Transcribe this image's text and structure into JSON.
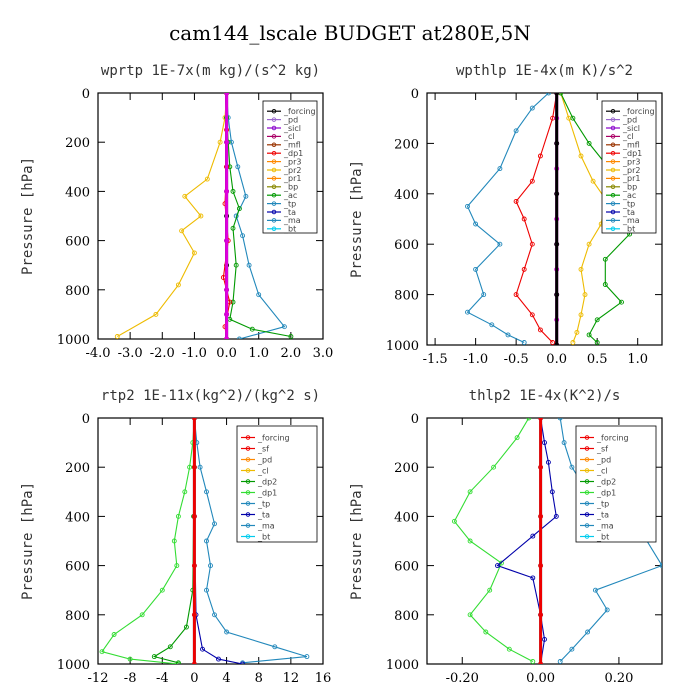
{
  "figure": {
    "title": "cam144_lscale  BUDGET at280E,5N"
  },
  "colors": {
    "magenta": "#dd00dd",
    "violet": "#9966cc",
    "purple": "#8800cc",
    "darkmagenta": "#aa0066",
    "maroon": "#993300",
    "red": "#ee0000",
    "orange": "#ff8800",
    "gold": "#eebb00",
    "olive": "#888800",
    "green": "#009900",
    "lime": "#33dd33",
    "teal": "#2288bb",
    "navy": "#0000aa",
    "cyan": "#00ccee",
    "black": "#000000"
  },
  "chart_data": [
    {
      "type": "line",
      "title": "wprtp  1E-7x(m kg)/(s^2 kg)",
      "ylabel": "Pressure [hPa]",
      "xlabel": "",
      "xlim": [
        -4,
        3
      ],
      "ylim": [
        1000,
        0
      ],
      "xticks": [
        -4,
        -3,
        -2,
        -1,
        0,
        1,
        2,
        3
      ],
      "xtick_labels": [
        "-4.0",
        "-3.0",
        "-2.0",
        "-1.0",
        "0.0",
        "1.0",
        "2.0",
        "3.0"
      ],
      "yticks": [
        0,
        200,
        400,
        600,
        800,
        1000
      ],
      "ytick_labels": [
        "0",
        "200",
        "400",
        "600",
        "800",
        "1000"
      ],
      "legend": [
        "_forcing",
        "_pd",
        "_sicl",
        "_cl",
        "_mfl",
        "_dp1",
        "_pr3",
        "_pr2",
        "_pr1",
        "_bp",
        "_ac",
        "_tp",
        "_ta",
        "_ma",
        "_bt"
      ],
      "legend_position": "top-right",
      "series": [
        {
          "name": "_forcing",
          "color": "black",
          "x": [
            0,
            0,
            0,
            0,
            0,
            0,
            0,
            0,
            0,
            0,
            0
          ],
          "y": [
            0,
            100,
            200,
            300,
            400,
            500,
            600,
            700,
            800,
            900,
            1000
          ]
        },
        {
          "name": "_pr1",
          "color": "gold",
          "x": [
            0,
            -0.05,
            -0.2,
            -0.6,
            -1.3,
            -0.8,
            -1.4,
            -1.0,
            -1.5,
            -2.2,
            -3.4
          ],
          "y": [
            0,
            100,
            200,
            350,
            420,
            500,
            560,
            650,
            780,
            900,
            990
          ]
        },
        {
          "name": "_tp",
          "color": "teal",
          "x": [
            0,
            0.05,
            0.15,
            0.35,
            0.6,
            0.3,
            0.5,
            0.7,
            1.0,
            1.8,
            0.4
          ],
          "y": [
            0,
            100,
            200,
            300,
            420,
            500,
            580,
            700,
            820,
            950,
            1000
          ]
        },
        {
          "name": "_ac",
          "color": "green",
          "x": [
            0,
            0,
            0.05,
            0.1,
            0.2,
            0.4,
            0.2,
            0.3,
            0.2,
            0.1,
            0.8,
            2.0
          ],
          "y": [
            0,
            100,
            200,
            300,
            400,
            470,
            550,
            700,
            850,
            920,
            960,
            990
          ]
        },
        {
          "name": "_dp1",
          "color": "red",
          "x": [
            0,
            0,
            0,
            -0.05,
            0.05,
            -0.1,
            0.1,
            -0.05,
            0
          ],
          "y": [
            0,
            150,
            300,
            450,
            600,
            750,
            850,
            950,
            1000
          ]
        },
        {
          "name": "_bt",
          "color": "magenta",
          "x": [
            0,
            0,
            0,
            0,
            0,
            0,
            0
          ],
          "y": [
            0,
            200,
            400,
            600,
            800,
            900,
            1000
          ]
        }
      ]
    },
    {
      "type": "line",
      "title": "wpthlp  1E-4x(m K)/s^2",
      "ylabel": "Pressure [hPa]",
      "xlabel": "",
      "xlim": [
        -1.6,
        1.3
      ],
      "ylim": [
        1000,
        0
      ],
      "xticks": [
        -1.5,
        -1.0,
        -0.5,
        0.0,
        0.5,
        1.0
      ],
      "xtick_labels": [
        "-1.5",
        "-1.0",
        "-0.5",
        "0.0",
        "0.5",
        "1.0"
      ],
      "yticks": [
        0,
        200,
        400,
        600,
        800,
        1000
      ],
      "ytick_labels": [
        "0",
        "200",
        "400",
        "600",
        "800",
        "1000"
      ],
      "legend": [
        "_forcing",
        "_pd",
        "_sicl",
        "_cl",
        "_mfl",
        "_dp1",
        "_pr3",
        "_pr2",
        "_pr1",
        "_bp",
        "_ac",
        "_tp",
        "_ta",
        "_ma",
        "_bt"
      ],
      "legend_position": "top-right",
      "series": [
        {
          "name": "_tp",
          "color": "teal",
          "x": [
            -0.1,
            -0.3,
            -0.5,
            -0.7,
            -1.1,
            -1.0,
            -0.7,
            -1.0,
            -0.9,
            -1.1,
            -0.8,
            -0.6,
            -0.4
          ],
          "y": [
            0,
            60,
            150,
            300,
            450,
            520,
            600,
            700,
            800,
            870,
            920,
            960,
            990
          ]
        },
        {
          "name": "_dp1",
          "color": "red",
          "x": [
            0,
            -0.05,
            -0.2,
            -0.3,
            -0.5,
            -0.4,
            -0.3,
            -0.4,
            -0.5,
            -0.3,
            -0.2,
            -0.05
          ],
          "y": [
            0,
            100,
            250,
            350,
            430,
            500,
            600,
            700,
            800,
            880,
            940,
            990
          ]
        },
        {
          "name": "_pr1",
          "color": "gold",
          "x": [
            0.05,
            0.15,
            0.3,
            0.45,
            0.6,
            0.55,
            0.4,
            0.3,
            0.35,
            0.3,
            0.25,
            0.2
          ],
          "y": [
            0,
            100,
            250,
            350,
            420,
            520,
            600,
            700,
            800,
            880,
            950,
            990
          ]
        },
        {
          "name": "_ac",
          "color": "green",
          "x": [
            0.05,
            0.2,
            0.4,
            0.7,
            1.0,
            0.8,
            0.9,
            0.6,
            0.6,
            0.8,
            0.5,
            0.4,
            0.5
          ],
          "y": [
            0,
            100,
            200,
            320,
            400,
            480,
            560,
            660,
            760,
            830,
            900,
            960,
            990
          ]
        },
        {
          "name": "_bt",
          "color": "magenta",
          "x": [
            0,
            0,
            0,
            0,
            0,
            0,
            0,
            0,
            0,
            0,
            0
          ],
          "y": [
            0,
            100,
            200,
            300,
            400,
            500,
            600,
            700,
            800,
            900,
            1000
          ]
        },
        {
          "name": "_forcing",
          "color": "black",
          "x": [
            0,
            0,
            0,
            0,
            0,
            0
          ],
          "y": [
            0,
            200,
            400,
            600,
            800,
            1000
          ]
        }
      ]
    },
    {
      "type": "line",
      "title": "rtp2  1E-11x(kg^2)/(kg^2 s)",
      "ylabel": "Pressure [hPa]",
      "xlabel": "",
      "xlim": [
        -12,
        16
      ],
      "ylim": [
        1000,
        0
      ],
      "xticks": [
        -12,
        -8,
        -4,
        0,
        4,
        8,
        12,
        16
      ],
      "xtick_labels": [
        "-12",
        "-8",
        "-4",
        "0",
        "4",
        "8",
        "12",
        "16"
      ],
      "yticks": [
        0,
        200,
        400,
        600,
        800,
        1000
      ],
      "ytick_labels": [
        "0",
        "200",
        "400",
        "600",
        "800",
        "1000"
      ],
      "legend": [
        "_forcing",
        "_sf",
        "_pd",
        "_cl",
        "_dp2",
        "_dp1",
        "_tp",
        "_ta",
        "_ma",
        "_bt"
      ],
      "legend_position": "top-right",
      "series": [
        {
          "name": "_dp1",
          "color": "lime",
          "x": [
            0,
            -0.2,
            -0.6,
            -1.2,
            -2.0,
            -2.5,
            -2.2,
            -4.0,
            -6.5,
            -10.0,
            -11.5,
            -8.0,
            -2.0
          ],
          "y": [
            0,
            100,
            200,
            300,
            400,
            500,
            600,
            700,
            800,
            880,
            950,
            980,
            1000
          ]
        },
        {
          "name": "_tp",
          "color": "teal",
          "x": [
            0,
            0.3,
            0.7,
            1.5,
            2.5,
            1.5,
            2.0,
            1.5,
            2.5,
            4.0,
            10.0,
            14.0,
            6.0
          ],
          "y": [
            0,
            100,
            200,
            300,
            430,
            500,
            600,
            700,
            800,
            870,
            930,
            970,
            995
          ]
        },
        {
          "name": "_dp2",
          "color": "green",
          "x": [
            0,
            0,
            -0.1,
            -0.2,
            -1.0,
            -3.0,
            -5.0,
            -2.0
          ],
          "y": [
            0,
            200,
            400,
            700,
            850,
            930,
            970,
            995
          ]
        },
        {
          "name": "_ta",
          "color": "navy",
          "x": [
            0,
            0,
            0.2,
            1.0,
            3.0,
            6.0
          ],
          "y": [
            0,
            400,
            800,
            940,
            980,
            1000
          ]
        },
        {
          "name": "_bt",
          "color": "cyan",
          "x": [
            0,
            0,
            0,
            0,
            0,
            0
          ],
          "y": [
            0,
            200,
            400,
            600,
            800,
            1000
          ]
        },
        {
          "name": "_forcing",
          "color": "red",
          "x": [
            0,
            0,
            0,
            0,
            0,
            0
          ],
          "y": [
            0,
            200,
            400,
            600,
            800,
            1000
          ]
        }
      ]
    },
    {
      "type": "line",
      "title": "thlp2  1E-4x(K^2)/s",
      "ylabel": "Pressure [hPa]",
      "xlabel": "",
      "xlim": [
        -0.29,
        0.31
      ],
      "ylim": [
        1000,
        0
      ],
      "xticks": [
        -0.2,
        0.0,
        0.2
      ],
      "xtick_labels": [
        "-0.20",
        "0.00",
        "0.20"
      ],
      "yticks": [
        0,
        200,
        400,
        600,
        800,
        1000
      ],
      "ytick_labels": [
        "0",
        "200",
        "400",
        "600",
        "800",
        "1000"
      ],
      "legend": [
        "_forcing",
        "_sf",
        "_pd",
        "_cl",
        "_dp2",
        "_dp1",
        "_tp",
        "_ta",
        "_ma",
        "_bt"
      ],
      "legend_position": "top-right",
      "series": [
        {
          "name": "_dp1",
          "color": "lime",
          "x": [
            -0.03,
            -0.06,
            -0.12,
            -0.18,
            -0.22,
            -0.18,
            -0.1,
            -0.13,
            -0.18,
            -0.14,
            -0.08,
            -0.02
          ],
          "y": [
            0,
            80,
            200,
            300,
            420,
            500,
            590,
            700,
            800,
            870,
            940,
            990
          ]
        },
        {
          "name": "_tp",
          "color": "teal",
          "x": [
            0.05,
            0.06,
            0.08,
            0.12,
            0.23,
            0.26,
            0.31,
            0.14,
            0.17,
            0.12,
            0.08,
            0.05
          ],
          "y": [
            0,
            100,
            200,
            300,
            400,
            470,
            600,
            700,
            780,
            870,
            940,
            990
          ]
        },
        {
          "name": "_ta",
          "color": "navy",
          "x": [
            0,
            0.01,
            0.02,
            0.03,
            0.04,
            -0.02,
            -0.11,
            -0.02,
            0,
            0.01,
            0
          ],
          "y": [
            0,
            100,
            180,
            300,
            400,
            480,
            600,
            650,
            800,
            900,
            1000
          ]
        },
        {
          "name": "_bt",
          "color": "cyan",
          "x": [
            0,
            0,
            0,
            0,
            0,
            0
          ],
          "y": [
            0,
            200,
            400,
            600,
            800,
            1000
          ]
        },
        {
          "name": "_forcing",
          "color": "red",
          "x": [
            0,
            0,
            0,
            0,
            0,
            0
          ],
          "y": [
            0,
            200,
            400,
            600,
            800,
            1000
          ]
        }
      ]
    }
  ]
}
